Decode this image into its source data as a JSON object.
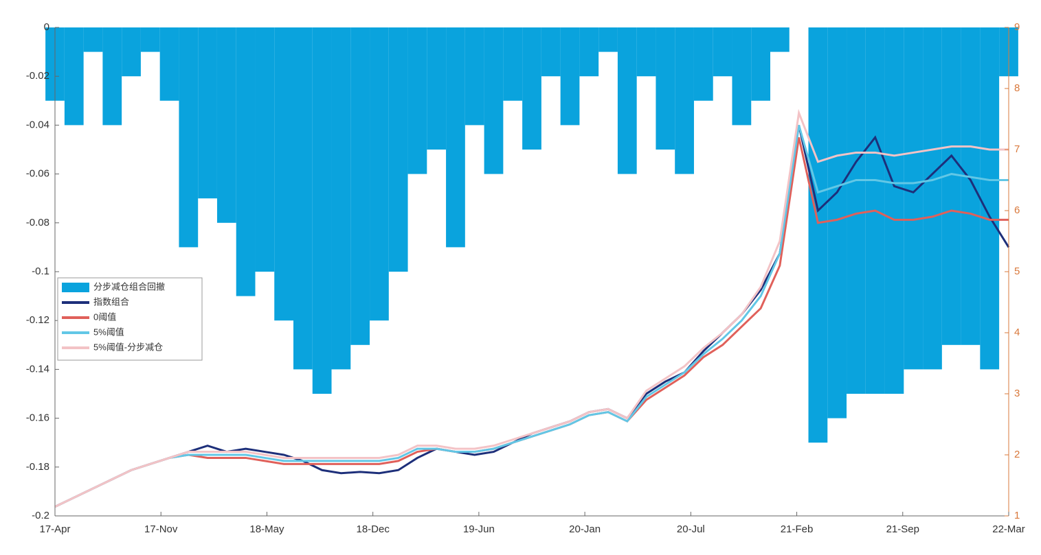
{
  "chart_data": {
    "type": "combo",
    "x": [
      0,
      27,
      54,
      81,
      108,
      135,
      162,
      189,
      216,
      243,
      270,
      297,
      324,
      351,
      378,
      405,
      432,
      459,
      486,
      513,
      540,
      567,
      594,
      621,
      648,
      675,
      702,
      729,
      756,
      783,
      810,
      837,
      864,
      891,
      918,
      945,
      972,
      999,
      1026,
      1053,
      1080,
      1107,
      1134,
      1161,
      1188,
      1215,
      1242,
      1269,
      1296,
      1323,
      1350
    ],
    "xlim": [
      0,
      1350
    ],
    "xticks": [
      {
        "value": 0,
        "label": "17-Apr"
      },
      {
        "value": 150,
        "label": "17-Nov"
      },
      {
        "value": 300,
        "label": "18-May"
      },
      {
        "value": 450,
        "label": "18-Dec"
      },
      {
        "value": 600,
        "label": "19-Jun"
      },
      {
        "value": 750,
        "label": "20-Jan"
      },
      {
        "value": 900,
        "label": "20-Jul"
      },
      {
        "value": 1050,
        "label": "21-Feb"
      },
      {
        "value": 1200,
        "label": "21-Sep"
      },
      {
        "value": 1350,
        "label": "22-Mar"
      }
    ],
    "ylim": [
      -0.2,
      0
    ],
    "yticks": [
      0,
      -0.02,
      -0.04,
      -0.06,
      -0.08,
      -0.1,
      -0.12,
      -0.14,
      -0.16,
      -0.18,
      -0.2
    ],
    "y2lim": [
      1,
      9
    ],
    "y2ticks": [
      1,
      2,
      3,
      4,
      5,
      6,
      7,
      8,
      9
    ],
    "series": [
      {
        "name": "分步减仓组合回撤",
        "type": "bar",
        "color": "#0aa3dd",
        "values": [
          -0.03,
          -0.04,
          -0.01,
          -0.04,
          -0.02,
          -0.01,
          -0.03,
          -0.09,
          -0.07,
          -0.08,
          -0.11,
          -0.1,
          -0.12,
          -0.14,
          -0.15,
          -0.14,
          -0.13,
          -0.12,
          -0.1,
          -0.06,
          -0.05,
          -0.09,
          -0.04,
          -0.06,
          -0.03,
          -0.05,
          -0.02,
          -0.04,
          -0.02,
          -0.01,
          -0.06,
          -0.02,
          -0.05,
          -0.06,
          -0.03,
          -0.02,
          -0.04,
          -0.03,
          -0.01,
          0,
          -0.17,
          -0.16,
          -0.15,
          -0.15,
          -0.15,
          -0.14,
          -0.14,
          -0.13,
          -0.13,
          -0.14,
          -0.02
        ]
      },
      {
        "name": "指数组合",
        "type": "line",
        "axis": "y2",
        "color": "#1d2f7a",
        "values": [
          1.15,
          1.3,
          1.45,
          1.6,
          1.75,
          1.85,
          1.95,
          2.05,
          2.15,
          2.05,
          2.1,
          2.05,
          2.0,
          1.9,
          1.75,
          1.7,
          1.72,
          1.7,
          1.75,
          1.95,
          2.1,
          2.05,
          2.0,
          2.05,
          2.2,
          2.35,
          2.45,
          2.55,
          2.7,
          2.75,
          2.6,
          3.0,
          3.2,
          3.35,
          3.7,
          4.0,
          4.3,
          4.7,
          5.3,
          7.4,
          6.0,
          6.3,
          6.8,
          7.2,
          6.4,
          6.3,
          6.6,
          6.9,
          6.5,
          5.9,
          5.4
        ]
      },
      {
        "name": "0阈值",
        "type": "line",
        "axis": "y2",
        "color": "#e0605a",
        "values": [
          1.15,
          1.3,
          1.45,
          1.6,
          1.75,
          1.85,
          1.95,
          2.0,
          1.95,
          1.95,
          1.95,
          1.9,
          1.85,
          1.85,
          1.85,
          1.85,
          1.85,
          1.85,
          1.9,
          2.05,
          2.1,
          2.05,
          2.05,
          2.1,
          2.2,
          2.3,
          2.4,
          2.5,
          2.65,
          2.7,
          2.55,
          2.9,
          3.1,
          3.3,
          3.6,
          3.8,
          4.1,
          4.4,
          5.1,
          7.2,
          5.8,
          5.85,
          5.95,
          6.0,
          5.85,
          5.85,
          5.9,
          6.0,
          5.95,
          5.85,
          5.85
        ]
      },
      {
        "name": "5%阈值",
        "type": "line",
        "axis": "y2",
        "color": "#62c7e6",
        "values": [
          1.15,
          1.3,
          1.45,
          1.6,
          1.75,
          1.85,
          1.95,
          2.0,
          2.0,
          2.0,
          2.0,
          1.95,
          1.9,
          1.9,
          1.9,
          1.9,
          1.9,
          1.9,
          1.95,
          2.1,
          2.1,
          2.05,
          2.05,
          2.1,
          2.2,
          2.3,
          2.4,
          2.5,
          2.65,
          2.7,
          2.55,
          2.95,
          3.15,
          3.35,
          3.65,
          3.9,
          4.2,
          4.6,
          5.3,
          7.4,
          6.3,
          6.4,
          6.5,
          6.5,
          6.45,
          6.45,
          6.5,
          6.6,
          6.55,
          6.5,
          6.5
        ]
      },
      {
        "name": "5%阈值-分步减仓",
        "type": "line",
        "axis": "y2",
        "color": "#f3c3c6",
        "values": [
          1.15,
          1.3,
          1.45,
          1.6,
          1.75,
          1.85,
          1.95,
          2.05,
          2.05,
          2.05,
          2.05,
          2.0,
          1.95,
          1.95,
          1.95,
          1.95,
          1.95,
          1.95,
          2.0,
          2.15,
          2.15,
          2.1,
          2.1,
          2.15,
          2.25,
          2.35,
          2.45,
          2.55,
          2.7,
          2.75,
          2.6,
          3.05,
          3.25,
          3.45,
          3.75,
          4.0,
          4.3,
          4.75,
          5.5,
          7.6,
          6.8,
          6.9,
          6.95,
          6.95,
          6.9,
          6.95,
          7.0,
          7.05,
          7.05,
          7.0,
          7.0
        ]
      }
    ]
  }
}
